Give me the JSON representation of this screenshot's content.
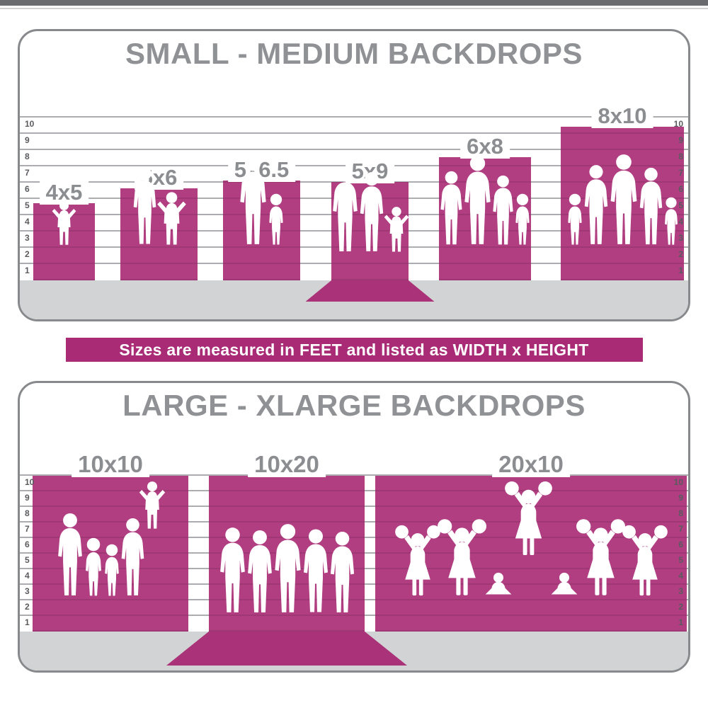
{
  "banner": {
    "text": "Sizes are measured in FEET and listed as WIDTH x HEIGHT"
  },
  "colors": {
    "bar_magenta": "#b23e82",
    "banner_magenta": "#a92b76",
    "sweep_magenta": "#aa3278",
    "title_gray": "#8f9194",
    "label_gray": "#8b8d90",
    "tick_gray": "#595b5e",
    "grid_line_gray": "#abadb0",
    "floor_gray": "#d2d3d5",
    "panel_border_gray": "#87898c",
    "top_strip_gray": "#6a6b6e",
    "silhouette_white": "#ffffff"
  },
  "panels": [
    {
      "title": "SMALL - MEDIUM BACKDROPS",
      "ruler_ticks": [
        10,
        9,
        8,
        7,
        6,
        5,
        4,
        3,
        2,
        1
      ],
      "bars": [
        {
          "label": "4x5",
          "width_ft": 4,
          "height_ft": 5,
          "wall_ft": 5,
          "sweep": false,
          "figures": [
            {
              "t": "child-up",
              "ft": 3.0,
              "who": "toddler"
            }
          ]
        },
        {
          "label": "5x6",
          "width_ft": 5,
          "height_ft": 6,
          "wall_ft": 6,
          "sweep": false,
          "figures": [
            {
              "t": "adult",
              "ft": 5.2,
              "who": "woman"
            },
            {
              "t": "child-up",
              "ft": 3.6,
              "who": "child"
            }
          ]
        },
        {
          "label": "5x6.5",
          "width_ft": 5,
          "height_ft": 6.5,
          "wall_ft": 6.5,
          "sweep": false,
          "figures": [
            {
              "t": "adult",
              "ft": 5.9,
              "who": "man"
            },
            {
              "t": "child",
              "ft": 3.4,
              "who": "boy"
            }
          ]
        },
        {
          "label": "5x9",
          "width_ft": 5,
          "height_ft": 9,
          "wall_ft": 6.4,
          "sweep": true,
          "figures": [
            {
              "t": "adult",
              "ft": 5.6,
              "who": "man"
            },
            {
              "t": "adult",
              "ft": 5.3,
              "who": "woman"
            },
            {
              "t": "child-up",
              "ft": 3.1,
              "who": "child"
            }
          ]
        },
        {
          "label": "6x8",
          "width_ft": 6,
          "height_ft": 8,
          "wall_ft": 8,
          "sweep": false,
          "figures": [
            {
              "t": "adult",
              "ft": 4.9,
              "who": "woman"
            },
            {
              "t": "adult",
              "ft": 5.9,
              "who": "man"
            },
            {
              "t": "adult",
              "ft": 4.6,
              "who": "woman"
            },
            {
              "t": "child",
              "ft": 3.4,
              "who": "boy"
            }
          ]
        },
        {
          "label": "8x10",
          "width_ft": 8,
          "height_ft": 10,
          "wall_ft": 10,
          "sweep": false,
          "figures": [
            {
              "t": "child",
              "ft": 3.4,
              "who": "girl"
            },
            {
              "t": "adult",
              "ft": 5.3,
              "who": "woman"
            },
            {
              "t": "adult",
              "ft": 6.0,
              "who": "man"
            },
            {
              "t": "adult",
              "ft": 5.1,
              "who": "woman"
            },
            {
              "t": "child",
              "ft": 3.2,
              "who": "boy"
            }
          ]
        }
      ]
    },
    {
      "title": "LARGE - XLARGE BACKDROPS",
      "ruler_ticks": [
        10,
        9,
        8,
        7,
        6,
        5,
        4,
        3,
        2,
        1
      ],
      "bars": [
        {
          "label": "10x10",
          "width_ft": 10,
          "height_ft": 10,
          "wall_ft": 10,
          "sweep": false,
          "figures": [
            {
              "t": "adult",
              "ft": 5.4,
              "who": "man"
            },
            {
              "t": "child",
              "ft": 3.8,
              "who": "boy"
            },
            {
              "t": "child",
              "ft": 3.4,
              "who": "girl"
            },
            {
              "t": "adult",
              "ft": 5.1,
              "who": "woman"
            },
            {
              "t": "child-up",
              "ft": 3.2,
              "raise": 4.3,
              "who": "child-on-shoulders"
            }
          ]
        },
        {
          "label": "10x20",
          "width_ft": 10,
          "height_ft": 20,
          "wall_ft": 10,
          "sweep": true,
          "figures": [
            {
              "t": "adult",
              "ft": 5.6,
              "who": "man"
            },
            {
              "t": "adult",
              "ft": 5.4,
              "who": "man"
            },
            {
              "t": "adult",
              "ft": 5.8,
              "who": "man"
            },
            {
              "t": "adult",
              "ft": 5.5,
              "who": "man"
            },
            {
              "t": "adult",
              "ft": 5.3,
              "who": "man"
            }
          ]
        },
        {
          "label": "20x10",
          "width_ft": 20,
          "height_ft": 10,
          "wall_ft": 10,
          "sweep": false,
          "figures": [
            {
              "t": "cheer",
              "ft": 4.7,
              "who": "cheerleader"
            },
            {
              "t": "cheer",
              "ft": 5.1,
              "who": "cheerleader"
            },
            {
              "t": "sit",
              "ft": 1.6,
              "who": "cheerleader-base"
            },
            {
              "t": "cheer",
              "ft": 4.9,
              "raise": 2.6,
              "who": "cheerleader-flyer"
            },
            {
              "t": "sit",
              "ft": 1.6,
              "who": "cheerleader-base"
            },
            {
              "t": "cheer",
              "ft": 5.1,
              "who": "cheerleader"
            },
            {
              "t": "cheer",
              "ft": 4.7,
              "who": "cheerleader"
            }
          ]
        }
      ]
    }
  ],
  "chart_data": [
    {
      "type": "bar",
      "title": "SMALL - MEDIUM BACKDROPS",
      "categories": [
        "4x5",
        "5x6",
        "5x6.5",
        "5x9",
        "6x8",
        "8x10"
      ],
      "series": [
        {
          "name": "width_ft",
          "values": [
            4,
            5,
            5,
            5,
            6,
            8
          ]
        },
        {
          "name": "height_ft",
          "values": [
            5,
            6,
            6.5,
            9,
            8,
            10
          ]
        }
      ],
      "unit": "feet",
      "ylabel": "feet",
      "ylim": [
        0,
        10
      ],
      "yticks": [
        1,
        2,
        3,
        4,
        5,
        6,
        7,
        8,
        9,
        10
      ],
      "grid": true,
      "legend_position": "none",
      "note": "5x9 extends onto the floor as a sweep"
    },
    {
      "type": "bar",
      "title": "LARGE - XLARGE BACKDROPS",
      "categories": [
        "10x10",
        "10x20",
        "20x10"
      ],
      "series": [
        {
          "name": "width_ft",
          "values": [
            10,
            10,
            20
          ]
        },
        {
          "name": "height_ft",
          "values": [
            10,
            20,
            10
          ]
        }
      ],
      "unit": "feet",
      "ylabel": "feet",
      "ylim": [
        0,
        10
      ],
      "yticks": [
        1,
        2,
        3,
        4,
        5,
        6,
        7,
        8,
        9,
        10
      ],
      "grid": true,
      "legend_position": "none",
      "note": "10x20 extends onto the floor as a sweep"
    }
  ]
}
